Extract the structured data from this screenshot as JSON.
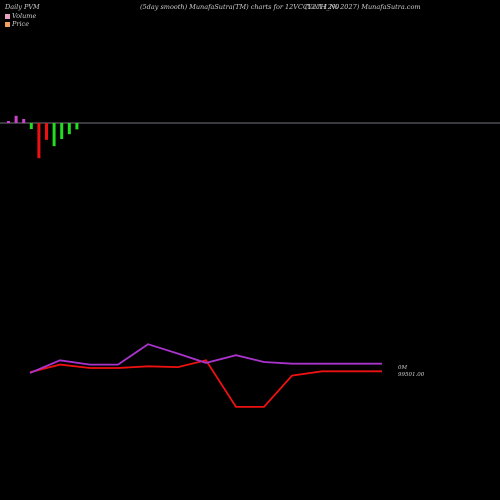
{
  "header": {
    "left": "Daily PVM",
    "center": "(5day smooth) MunafaSutra(TM) charts for 12VCCL27H_N0",
    "right": "(Vccl 12% 2027) MunafaSutra.com"
  },
  "legend": {
    "items": [
      {
        "label": "Volume",
        "color": "#e6a0c0"
      },
      {
        "label": "Price",
        "color": "#f0a060"
      }
    ]
  },
  "colors": {
    "background": "#000000",
    "baseline": "#9a9aa6",
    "bar_up": "#22dd22",
    "bar_down": "#ee1111",
    "bar_neutral": "#cc44cc",
    "price_line": "#ee1111",
    "volume_line": "#aa33cc"
  },
  "chart_data": [
    {
      "type": "bar",
      "panel": "volume-bars",
      "series": [
        {
          "name": "",
          "values": [
            0.5,
            1.8,
            1.0,
            -1.5,
            -8.8,
            -4.2,
            -5.8,
            -4.0,
            -2.8,
            -1.6
          ],
          "colors": [
            "neutral",
            "neutral",
            "neutral",
            "up",
            "down",
            "down",
            "up",
            "up",
            "up",
            "up"
          ]
        }
      ]
    },
    {
      "type": "line",
      "panel": "price-volume",
      "x": [
        0,
        1,
        2,
        3,
        4,
        5,
        6,
        7,
        8,
        9,
        10,
        11,
        12
      ],
      "series": [
        {
          "name": "",
          "color": "red",
          "values": [
            99497,
            99506,
            99502,
            99502,
            99504,
            99503,
            99511,
            99456,
            99456,
            99493,
            99498,
            99498,
            99498
          ]
        },
        {
          "name": "",
          "color": "purple",
          "values": [
            99496,
            99511,
            99506,
            99506,
            99530,
            99519,
            99508,
            99517,
            99509,
            99507,
            99507,
            99507,
            99507
          ]
        }
      ],
      "x_pos": [
        30,
        60,
        90,
        118,
        148,
        178,
        206,
        236,
        264,
        292,
        322,
        352,
        382
      ],
      "labels": {
        "volume": "0M",
        "price": "99501.00"
      }
    }
  ]
}
